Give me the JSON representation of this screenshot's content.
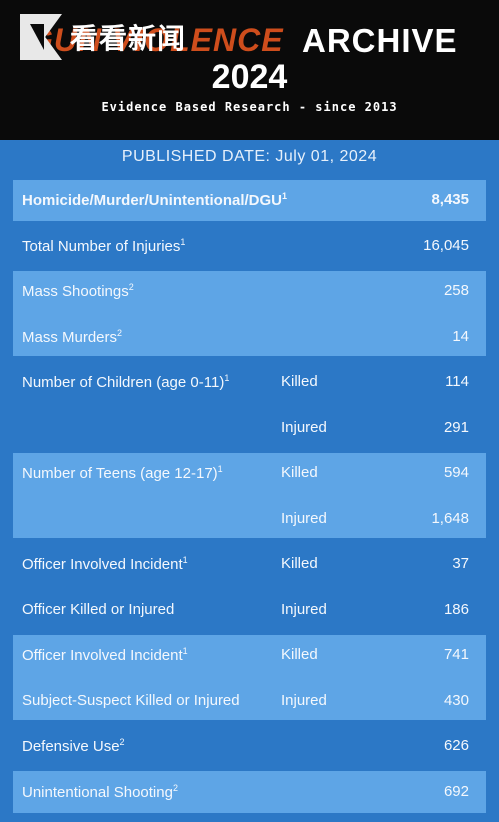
{
  "watermark": {
    "text": "看看新闻"
  },
  "header": {
    "title_partial": "GUN VIOLENCE",
    "title_main": "ARCHIVE",
    "year": "2024",
    "tagline": "Evidence Based Research - since 2013"
  },
  "published": "PUBLISHED DATE: July 01, 2024",
  "rows": [
    {
      "label": "Homicide/Murder/Unintentional/DGU",
      "sup": "1",
      "sub": "",
      "value": "8,435",
      "bold": true
    },
    {
      "label": "Total Number of Injuries",
      "sup": "1",
      "sub": "",
      "value": "16,045"
    },
    {
      "label": "Mass Shootings",
      "sup": "2",
      "sub": "",
      "value": "258"
    },
    {
      "label": "Mass Murders",
      "sup": "2",
      "sub": "",
      "value": "14"
    },
    {
      "label": "Number of Children (age 0-11)",
      "sup": "1",
      "sub": "Killed",
      "value": "114"
    },
    {
      "label": "",
      "sup": "",
      "sub": "Injured",
      "value": "291"
    },
    {
      "label": "Number of Teens (age 12-17)",
      "sup": "1",
      "sub": "Killed",
      "value": "594"
    },
    {
      "label": "",
      "sup": "",
      "sub": "Injured",
      "value": "1,648"
    },
    {
      "label": "Officer Involved Incident",
      "sup": "1",
      "sub": "Killed",
      "value": "37"
    },
    {
      "label": "Officer Killed or Injured",
      "sup": "",
      "sub": "Injured",
      "value": "186"
    },
    {
      "label": "Officer Involved Incident",
      "sup": "1",
      "sub": "Killed",
      "value": "741"
    },
    {
      "label": "Subject-Suspect Killed or Injured",
      "sup": "",
      "sub": "Injured",
      "value": "430"
    },
    {
      "label": "Defensive Use",
      "sup": "2",
      "sub": "",
      "value": "626"
    },
    {
      "label": "Unintentional Shooting",
      "sup": "2",
      "sub": "",
      "value": "692"
    }
  ]
}
